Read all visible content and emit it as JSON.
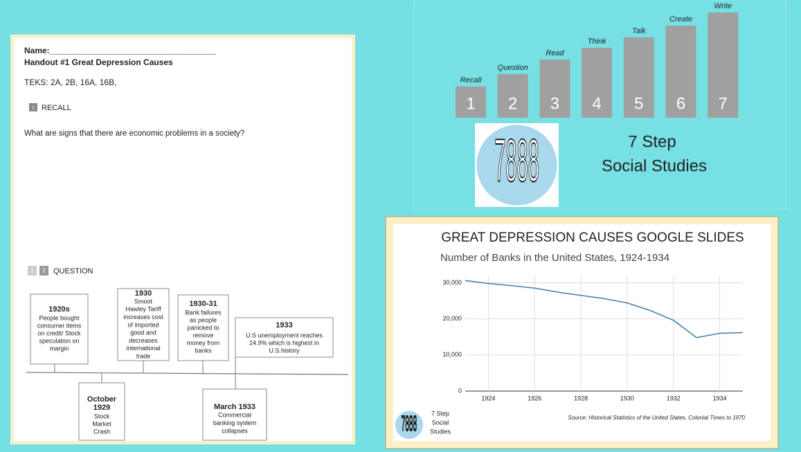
{
  "handout": {
    "name_label": "Name:____________________________________",
    "title": "Handout #1 Great Depression Causes",
    "teks": "TEKS: 2A, 2B, 16A, 16B,",
    "recall": {
      "step": "1",
      "label": "RECALL"
    },
    "question_text": "What are signs that there are economic problems in a society?",
    "question": {
      "steps": [
        "1",
        "2"
      ],
      "label": "QUESTION"
    },
    "timeline": [
      {
        "heading": [
          "1920s"
        ],
        "lines": [
          "People bought",
          "consumer items",
          "on credit/ Stock",
          "speculation  on",
          "margin"
        ]
      },
      {
        "heading": [
          "1930"
        ],
        "lines": [
          "Smoot",
          "Hawley Tariff",
          "increases cost",
          "of imported",
          "good and",
          "decreases",
          "international",
          "trade"
        ]
      },
      {
        "heading": [
          "1930-31"
        ],
        "lines": [
          "Bank failures",
          "as people",
          "panicked to",
          "remove",
          "money from",
          "banks"
        ]
      },
      {
        "heading": [
          "1933"
        ],
        "lines": [
          "U.S unemployment reaches",
          "24.9% which is highest in",
          "U.S.history"
        ]
      },
      {
        "heading": [
          "October",
          "1929"
        ],
        "lines": [
          "Stock",
          "Market",
          "Crash"
        ]
      },
      {
        "heading": [
          "March 1933"
        ],
        "lines": [
          "Commercial",
          "banking system",
          "collapses"
        ]
      }
    ]
  },
  "steps": {
    "items": [
      {
        "label": "Recall",
        "number": "1"
      },
      {
        "label": "Question",
        "number": "2"
      },
      {
        "label": "Read",
        "number": "3"
      },
      {
        "label": "Think",
        "number": "4"
      },
      {
        "label": "Talk",
        "number": "5"
      },
      {
        "label": "Create",
        "number": "6"
      },
      {
        "label": "Write",
        "number": "7"
      }
    ],
    "logo": "7888",
    "brand": [
      "7 Step",
      "Social Studies"
    ]
  },
  "slide": {
    "title": "GREAT DEPRESSION CAUSES GOOGLE SLIDES",
    "logo": "7888",
    "logo_lines": [
      "7 Step",
      "Social",
      "Studies"
    ]
  },
  "chart_data": {
    "type": "line",
    "title": "Number of Banks in the United States, 1924-1934",
    "source": "Source: Historical Statistics of the United States, Colonial Times to 1970",
    "x": [
      1923,
      1924,
      1925,
      1926,
      1927,
      1928,
      1929,
      1930,
      1931,
      1932,
      1933,
      1934,
      1935
    ],
    "series": [
      {
        "name": "Number of Banks",
        "color": "#3f7fa8",
        "values": [
          30600,
          29800,
          29200,
          28500,
          27400,
          26500,
          25600,
          24400,
          22300,
          19600,
          14800,
          16000,
          16200
        ]
      }
    ],
    "xlim": [
      1923,
      1935
    ],
    "ylim": [
      0,
      32000
    ],
    "xticks": [
      1924,
      1926,
      1928,
      1930,
      1932,
      1934
    ],
    "yticks": [
      0,
      {
        "value": 10000,
        "label": "10,000"
      },
      {
        "value": 20000,
        "label": "20,000"
      },
      {
        "value": 30000,
        "label": "30,000"
      }
    ],
    "grid": true
  }
}
